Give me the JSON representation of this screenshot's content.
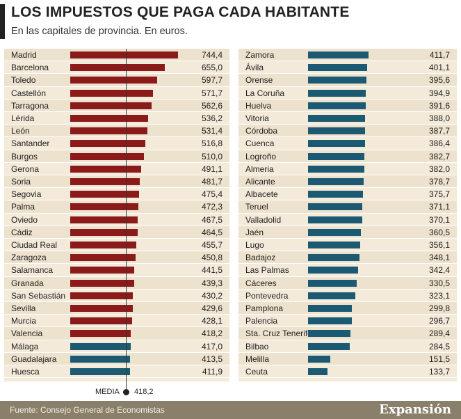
{
  "header": {
    "title": "LOS IMPUESTOS QUE PAGA CADA HABITANTE",
    "subtitle": "En las capitales de provincia. En euros."
  },
  "colors": {
    "above_media": "#8b1a1a",
    "below_media": "#1c5a73",
    "panel": "#f3ead9",
    "footer": "#8a7f6a"
  },
  "chart_data": {
    "type": "bar",
    "orientation": "horizontal",
    "title": "LOS IMPUESTOS QUE PAGA CADA HABITANTE",
    "subtitle": "En las capitales de provincia. En euros.",
    "reference_line": {
      "label": "MEDIA",
      "value": 418.2,
      "value_label": "418,2"
    },
    "xlim": [
      0,
      860
    ],
    "columns": [
      {
        "categories": [
          "Madrid",
          "Barcelona",
          "Toledo",
          "Castellón",
          "Tarragona",
          "Lérida",
          "León",
          "Santander",
          "Burgos",
          "Gerona",
          "Soria",
          "Segovia",
          "Palma",
          "Oviedo",
          "Cádiz",
          "Ciudad Real",
          "Zaragoza",
          "Salamanca",
          "Granada",
          "San Sebastián",
          "Sevilla",
          "Murcia",
          "Valencia",
          "Málaga",
          "Guadalajara",
          "Huesca"
        ],
        "values": [
          744.4,
          655.0,
          597.7,
          571.7,
          562.6,
          536.2,
          531.4,
          516.8,
          510.0,
          491.1,
          481.7,
          475.4,
          472.3,
          467.5,
          464.5,
          455.7,
          450.8,
          441.5,
          439.3,
          430.2,
          429.6,
          428.1,
          418.2,
          417.0,
          413.5,
          411.9
        ],
        "labels": [
          "744,4",
          "655,0",
          "597,7",
          "571,7",
          "562,6",
          "536,2",
          "531,4",
          "516,8",
          "510,0",
          "491,1",
          "481,7",
          "475,4",
          "472,3",
          "467,5",
          "464,5",
          "455,7",
          "450,8",
          "441,5",
          "439,3",
          "430,2",
          "429,6",
          "428,1",
          "418,2",
          "417,0",
          "413,5",
          "411,9"
        ]
      },
      {
        "categories": [
          "Zamora",
          "Ávila",
          "Orense",
          "La Coruña",
          "Huelva",
          "Vitoria",
          "Córdoba",
          "Cuenca",
          "Logroño",
          "Almeria",
          "Alicante",
          "Albacete",
          "Teruel",
          "Valladolid",
          "Jaén",
          "Lugo",
          "Badajoz",
          "Las Palmas",
          "Cáceres",
          "Pontevedra",
          "Pamplona",
          "Palencia",
          "Sta. Cruz Tenerife",
          "Bilbao",
          "Melilla",
          "Ceuta"
        ],
        "values": [
          411.7,
          401.1,
          395.6,
          394.9,
          391.6,
          388.0,
          387.7,
          386.4,
          382.7,
          382.0,
          378.7,
          375.7,
          371.1,
          370.1,
          360.5,
          356.1,
          348.1,
          342.4,
          330.5,
          323.1,
          299.8,
          296.7,
          289.4,
          284.5,
          151.5,
          133.7
        ],
        "labels": [
          "411,7",
          "401,1",
          "395,6",
          "394,9",
          "391,6",
          "388,0",
          "387,7",
          "386,4",
          "382,7",
          "382,0",
          "378,7",
          "375,7",
          "371,1",
          "370,1",
          "360,5",
          "356,1",
          "348,1",
          "342,4",
          "330,5",
          "323,1",
          "299,8",
          "296,7",
          "289,4",
          "284,5",
          "151,5",
          "133,7"
        ]
      }
    ]
  },
  "footer": {
    "source": "Fuente: Consejo General de Economistas",
    "brand": "Expansión"
  }
}
